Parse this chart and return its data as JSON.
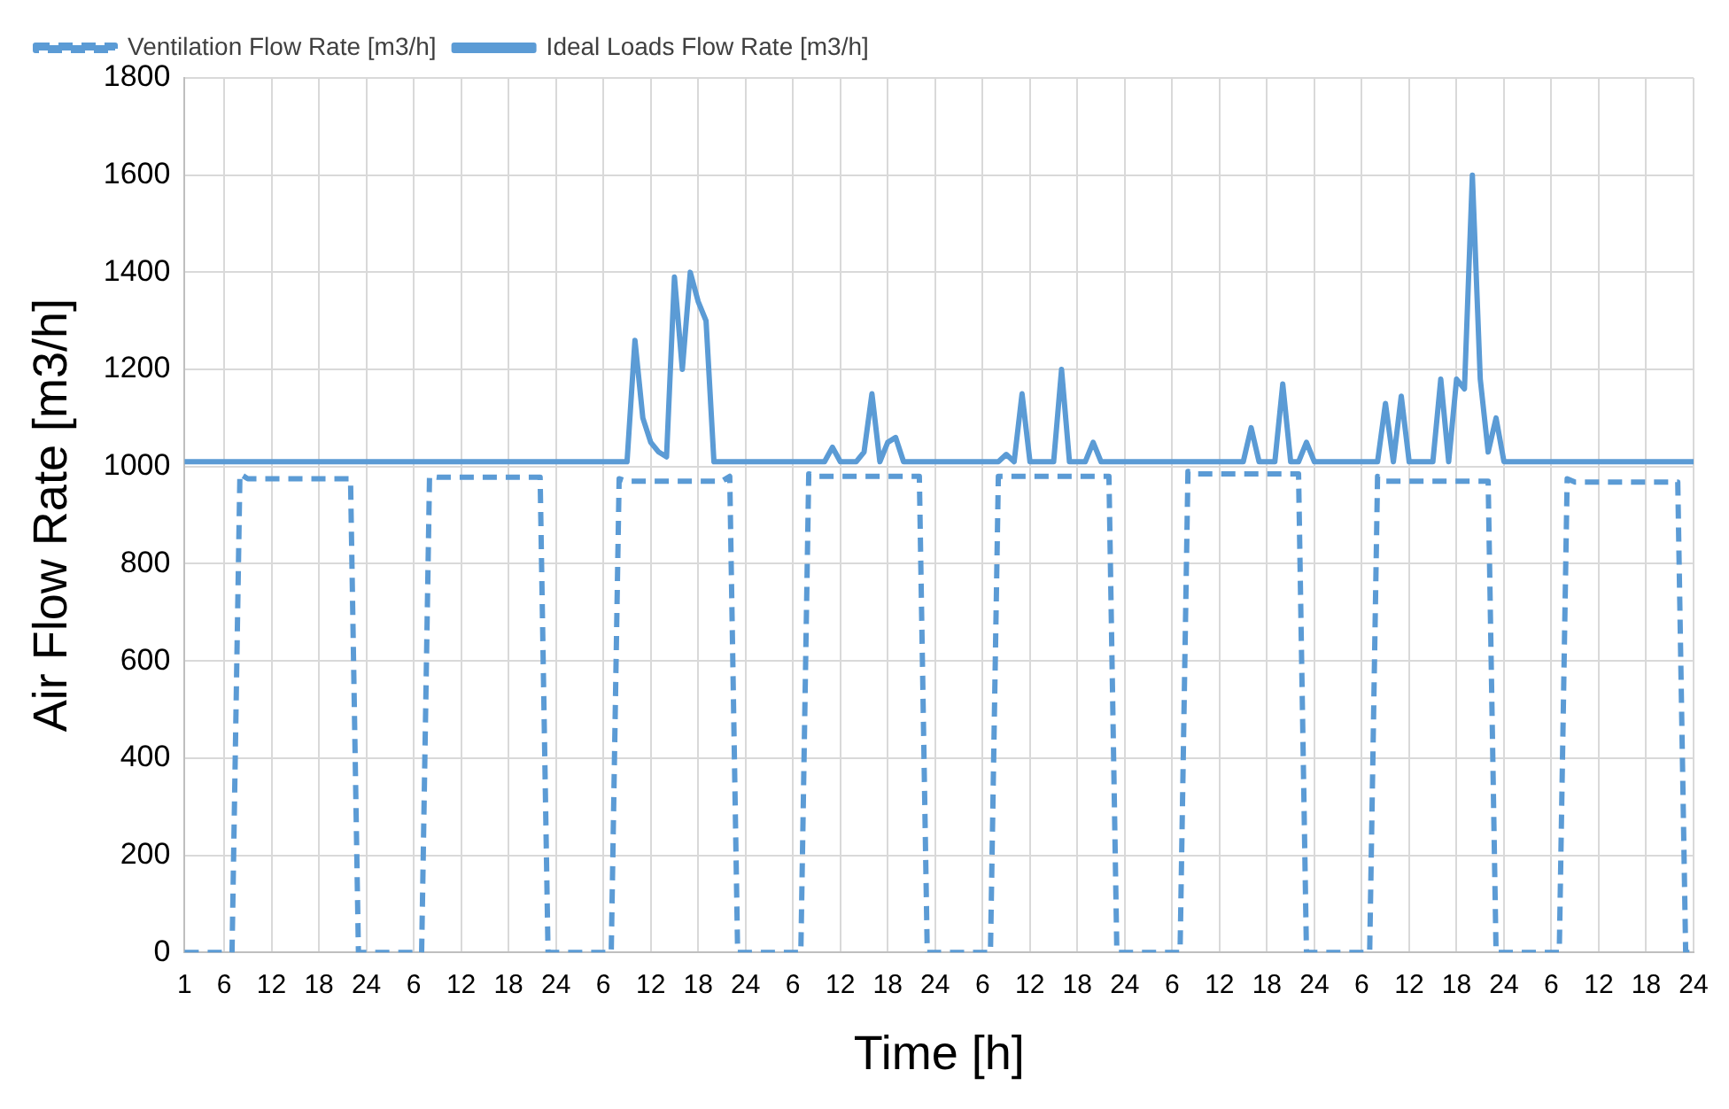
{
  "chart_data": {
    "type": "line",
    "xlabel": "Time [h]",
    "ylabel": "Air Flow Rate [m3/h]",
    "categories": [
      "1",
      null,
      null,
      null,
      null,
      "6",
      null,
      null,
      null,
      null,
      null,
      "12",
      null,
      null,
      null,
      null,
      null,
      "18",
      null,
      null,
      null,
      null,
      null,
      "24",
      null,
      null,
      null,
      null,
      null,
      "6",
      null,
      null,
      null,
      null,
      null,
      "12",
      null,
      null,
      null,
      null,
      null,
      "18",
      null,
      null,
      null,
      null,
      null,
      "24",
      null,
      null,
      null,
      null,
      null,
      "6",
      null,
      null,
      null,
      null,
      null,
      "12",
      null,
      null,
      null,
      null,
      null,
      "18",
      null,
      null,
      null,
      null,
      null,
      "24",
      null,
      null,
      null,
      null,
      null,
      "6",
      null,
      null,
      null,
      null,
      null,
      "12",
      null,
      null,
      null,
      null,
      null,
      "18",
      null,
      null,
      null,
      null,
      null,
      "24",
      null,
      null,
      null,
      null,
      null,
      "6",
      null,
      null,
      null,
      null,
      null,
      "12",
      null,
      null,
      null,
      null,
      null,
      "18",
      null,
      null,
      null,
      null,
      null,
      "24",
      null,
      null,
      null,
      null,
      null,
      "6",
      null,
      null,
      null,
      null,
      null,
      "12",
      null,
      null,
      null,
      null,
      null,
      "18",
      null,
      null,
      null,
      null,
      null,
      "24",
      null,
      null,
      null,
      null,
      null,
      "6",
      null,
      null,
      null,
      null,
      null,
      "12",
      null,
      null,
      null,
      null,
      null,
      "18",
      null,
      null,
      null,
      null,
      null,
      "24",
      null,
      null,
      null,
      null,
      null,
      "6",
      null,
      null,
      null,
      null,
      null,
      "12",
      null,
      null,
      null,
      null,
      null,
      "18",
      null,
      null,
      null,
      null,
      null,
      "24"
    ],
    "series": [
      {
        "name": "Ventilation Flow Rate [m3/h]",
        "color": "#5b9bd5",
        "line_style": "dashed",
        "values": [
          0,
          0,
          0,
          0,
          0,
          0,
          0,
          985,
          975,
          975,
          975,
          975,
          975,
          975,
          975,
          975,
          975,
          975,
          975,
          975,
          975,
          975,
          0,
          0,
          0,
          0,
          0,
          0,
          0,
          0,
          0,
          980,
          978,
          978,
          978,
          978,
          978,
          978,
          978,
          978,
          978,
          978,
          978,
          978,
          978,
          978,
          0,
          0,
          0,
          0,
          0,
          0,
          0,
          0,
          0,
          975,
          970,
          970,
          970,
          970,
          970,
          970,
          970,
          970,
          970,
          970,
          970,
          970,
          970,
          980,
          0,
          0,
          0,
          0,
          0,
          0,
          0,
          0,
          0,
          985,
          980,
          980,
          980,
          980,
          980,
          980,
          980,
          980,
          980,
          980,
          980,
          980,
          980,
          980,
          0,
          0,
          0,
          0,
          0,
          0,
          0,
          0,
          0,
          980,
          980,
          980,
          980,
          980,
          980,
          980,
          980,
          980,
          980,
          980,
          980,
          980,
          980,
          980,
          0,
          0,
          0,
          0,
          0,
          0,
          0,
          0,
          0,
          990,
          985,
          985,
          985,
          985,
          985,
          985,
          985,
          985,
          985,
          985,
          985,
          985,
          985,
          985,
          0,
          0,
          0,
          0,
          0,
          0,
          0,
          0,
          0,
          980,
          970,
          970,
          970,
          970,
          970,
          970,
          970,
          970,
          970,
          970,
          970,
          970,
          970,
          970,
          0,
          0,
          0,
          0,
          0,
          0,
          0,
          0,
          0,
          975,
          968,
          968,
          968,
          968,
          968,
          968,
          968,
          968,
          968,
          968,
          968,
          968,
          968,
          968,
          0,
          0
        ]
      },
      {
        "name": "Ideal Loads Flow Rate [m3/h]",
        "color": "#5b9bd5",
        "line_style": "solid",
        "values": [
          1010,
          1010,
          1010,
          1010,
          1010,
          1010,
          1010,
          1010,
          1010,
          1010,
          1010,
          1010,
          1010,
          1010,
          1010,
          1010,
          1010,
          1010,
          1010,
          1010,
          1010,
          1010,
          1010,
          1010,
          1010,
          1010,
          1010,
          1010,
          1010,
          1010,
          1010,
          1010,
          1010,
          1010,
          1010,
          1010,
          1010,
          1010,
          1010,
          1010,
          1010,
          1010,
          1010,
          1010,
          1010,
          1010,
          1010,
          1010,
          1010,
          1010,
          1010,
          1010,
          1010,
          1010,
          1010,
          1010,
          1010,
          1260,
          1100,
          1050,
          1030,
          1020,
          1390,
          1200,
          1400,
          1340,
          1300,
          1010,
          1010,
          1010,
          1010,
          1010,
          1010,
          1010,
          1010,
          1010,
          1010,
          1010,
          1010,
          1010,
          1010,
          1010,
          1040,
          1010,
          1010,
          1010,
          1030,
          1150,
          1010,
          1050,
          1060,
          1010,
          1010,
          1010,
          1010,
          1010,
          1010,
          1010,
          1010,
          1010,
          1010,
          1010,
          1010,
          1010,
          1025,
          1010,
          1150,
          1010,
          1010,
          1010,
          1010,
          1200,
          1010,
          1010,
          1010,
          1050,
          1010,
          1010,
          1010,
          1010,
          1010,
          1010,
          1010,
          1010,
          1010,
          1010,
          1010,
          1010,
          1010,
          1010,
          1010,
          1010,
          1010,
          1010,
          1010,
          1080,
          1010,
          1010,
          1010,
          1170,
          1010,
          1010,
          1050,
          1010,
          1010,
          1010,
          1010,
          1010,
          1010,
          1010,
          1010,
          1010,
          1130,
          1010,
          1145,
          1010,
          1010,
          1010,
          1010,
          1180,
          1010,
          1180,
          1160,
          1600,
          1180,
          1030,
          1100,
          1010,
          1010,
          1010,
          1010,
          1010,
          1010,
          1010,
          1010,
          1010,
          1010,
          1010,
          1010,
          1010,
          1010,
          1010,
          1010,
          1010,
          1010,
          1010,
          1010,
          1010,
          1010,
          1010,
          1010,
          1010
        ]
      }
    ],
    "ylim": [
      0,
      1800
    ],
    "yticks": [
      0,
      200,
      400,
      600,
      800,
      1000,
      1200,
      1400,
      1600,
      1800
    ],
    "grid": true,
    "legend": "top left",
    "marker": "none"
  }
}
